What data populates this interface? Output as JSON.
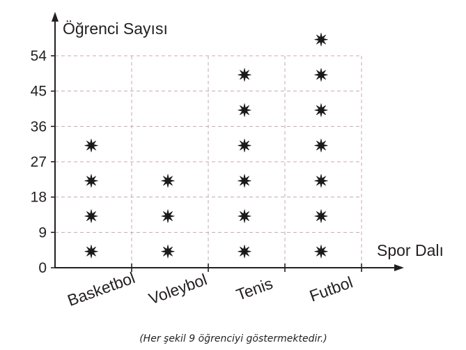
{
  "chart_data": {
    "type": "pictograph",
    "ylabel": "Öğrenci Sayısı",
    "xlabel": "Spor Dalı",
    "yticks": [
      0,
      9,
      18,
      27,
      36,
      45,
      54
    ],
    "ylim": [
      0,
      54
    ],
    "categories": [
      "Basketbol",
      "Voleybol",
      "Tenis",
      "Futbol"
    ],
    "symbol_counts": [
      4,
      3,
      6,
      7
    ],
    "values": [
      36,
      27,
      54,
      63
    ],
    "symbol_value": 9,
    "symbol": "star",
    "grid": true,
    "caption": "(Her şekil 9 öğrenciyi göstermektedir.)"
  }
}
